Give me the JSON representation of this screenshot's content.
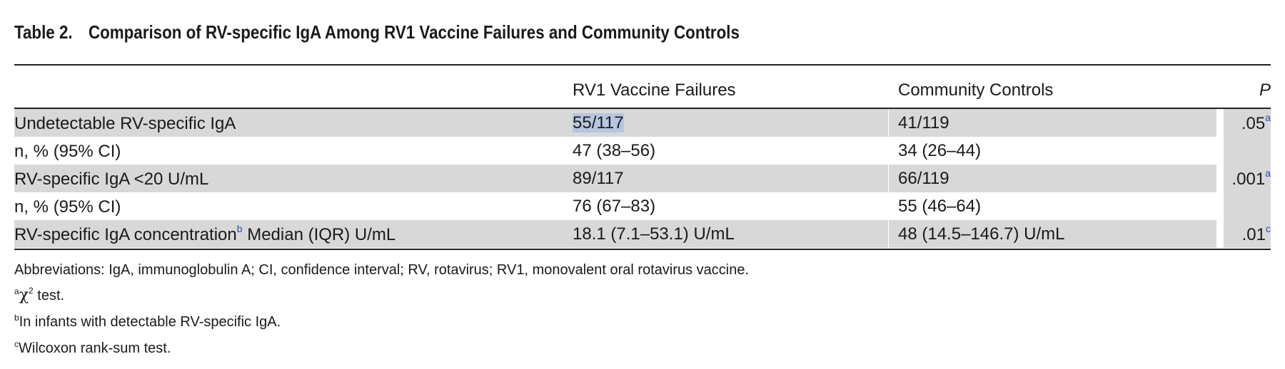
{
  "table": {
    "label": "Table 2.",
    "title": "Comparison of RV-specific IgA Among RV1 Vaccine Failures and Community Controls",
    "columns": [
      "",
      "RV1 Vaccine Failures",
      "Community Controls",
      "P"
    ],
    "rows": [
      {
        "label": "Undetectable RV-specific IgA",
        "label_sup": "",
        "label_suffix": "",
        "failures": "55/117",
        "controls": "41/119",
        "p": ".05",
        "p_sup": "a",
        "shaded": true,
        "failures_selected": true
      },
      {
        "label": "n, % (95% CI)",
        "label_sup": "",
        "label_suffix": "",
        "failures": "47 (38–56)",
        "controls": "34 (26–44)",
        "p": "",
        "p_sup": "",
        "shaded": false,
        "failures_selected": false
      },
      {
        "label": "RV-specific IgA <20 U/mL",
        "label_sup": "",
        "label_suffix": "",
        "failures": "89/117",
        "controls": "66/119",
        "p": ".001",
        "p_sup": "a",
        "shaded": true,
        "failures_selected": false
      },
      {
        "label": "n, % (95% CI)",
        "label_sup": "",
        "label_suffix": "",
        "failures": "76 (67–83)",
        "controls": "55 (46–64)",
        "p": "",
        "p_sup": "",
        "shaded": false,
        "failures_selected": false
      },
      {
        "label": "RV-specific IgA concentration",
        "label_sup": "b",
        "label_suffix": " Median (IQR) U/mL",
        "failures": "18.1 (7.1–53.1) U/mL",
        "controls": "48 (14.5–146.7) U/mL",
        "p": ".01",
        "p_sup": "c",
        "shaded": true,
        "failures_selected": false
      }
    ]
  },
  "footnotes": {
    "abbreviations": "Abbreviations: IgA, immunoglobulin A; CI, confidence interval; RV, rotavirus; RV1, monovalent oral rotavirus vaccine.",
    "a_marker": "a",
    "a_symbol": "χ",
    "a_symbol_sup": "2",
    "a_text": " test.",
    "b_marker": "b",
    "b_text": "In infants with detectable RV-specific IgA.",
    "c_marker": "c",
    "c_text": "Wilcoxon rank-sum test."
  },
  "colors": {
    "shade": "#d8d8d8",
    "selection": "#b5c6e0",
    "superscript": "#2a46c9"
  }
}
